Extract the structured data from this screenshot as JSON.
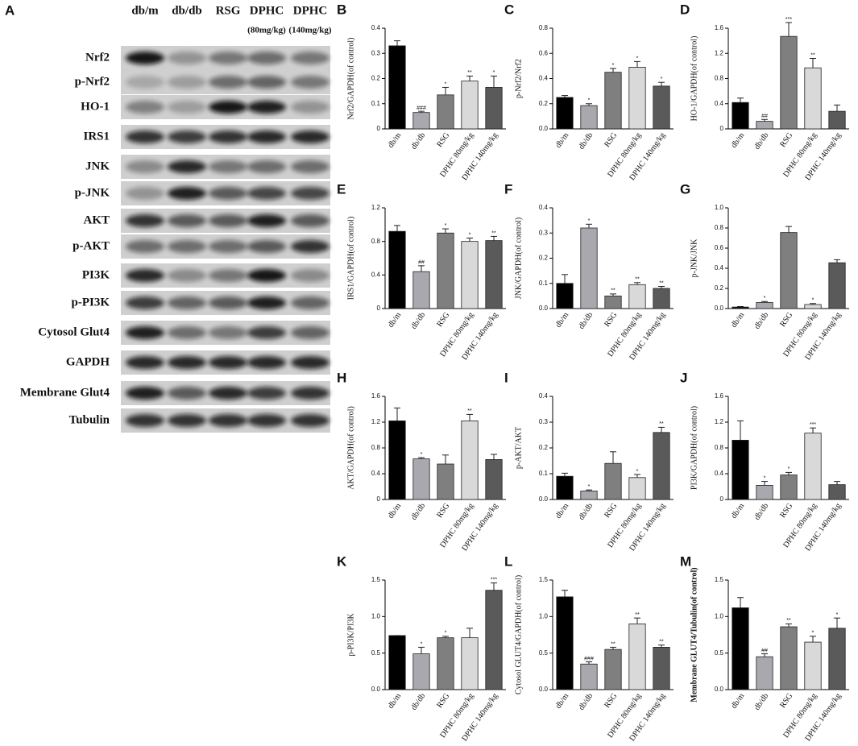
{
  "blot": {
    "label": "A",
    "columns": [
      {
        "name": "db/m"
      },
      {
        "name": "db/db"
      },
      {
        "name": "RSG"
      },
      {
        "name": "DPHC",
        "dose": "(80mg/kg)"
      },
      {
        "name": "DPHC",
        "dose": "(140mg/kg)"
      }
    ],
    "rows": [
      "Nrf2",
      "p-Nrf2",
      "HO-1",
      "IRS1",
      "JNK",
      "p-JNK",
      "AKT",
      "p-AKT",
      "PI3K",
      "p-PI3K",
      "Cytosol Glut4",
      "GAPDH",
      "Membrane Glut4",
      "Tubulin"
    ]
  },
  "chart_data": [
    {
      "type": "bar",
      "panel": "B",
      "ylabel": "Nrf2/GAPDH(of control)",
      "categories": [
        "db/m",
        "db/db",
        "RSG",
        "DPHC 80mg/kg",
        "DPHC 140mg/kg"
      ],
      "colors": [
        "#000000",
        "#a8a8ae",
        "#7f7f7f",
        "#d9d9d9",
        "#5a5a5a"
      ],
      "values": [
        0.33,
        0.065,
        0.135,
        0.19,
        0.165
      ],
      "errors": [
        0.02,
        0.005,
        0.03,
        0.02,
        0.045
      ],
      "annotations": [
        null,
        "###",
        "*",
        "**",
        "*"
      ],
      "ylim": [
        0,
        0.4
      ],
      "yticks": [
        0,
        0.1,
        0.2,
        0.3,
        0.4
      ]
    },
    {
      "type": "bar",
      "panel": "C",
      "ylabel": "p-Nrf2/Nrf2",
      "categories": [
        "db/m",
        "db/db",
        "RSG",
        "DPHC 80mg/kg",
        "DPHC 140mg/kg"
      ],
      "colors": [
        "#000000",
        "#a8a8ae",
        "#7f7f7f",
        "#d9d9d9",
        "#5a5a5a"
      ],
      "values": [
        0.25,
        0.185,
        0.45,
        0.49,
        0.34
      ],
      "errors": [
        0.015,
        0.015,
        0.03,
        0.045,
        0.03
      ],
      "annotations": [
        null,
        "*",
        "*",
        "*",
        "*"
      ],
      "ylim": [
        0,
        0.8
      ],
      "yticks": [
        {
          "value": 0,
          "label": "0.0"
        },
        0.2,
        0.4,
        0.6,
        0.8
      ]
    },
    {
      "type": "bar",
      "panel": "D",
      "ylabel": "HO-1/GAPDH(of control)",
      "categories": [
        "db/m",
        "db/db",
        "RSG",
        "DPHC 80mg/kg",
        "DPHC 140mg/kg"
      ],
      "colors": [
        "#000000",
        "#a8a8ae",
        "#7f7f7f",
        "#d9d9d9",
        "#5a5a5a"
      ],
      "values": [
        0.42,
        0.12,
        1.47,
        0.97,
        0.28
      ],
      "errors": [
        0.07,
        0.03,
        0.22,
        0.15,
        0.1
      ],
      "annotations": [
        null,
        "##",
        "***",
        "**",
        null
      ],
      "ylim": [
        0,
        1.6
      ],
      "yticks": [
        0,
        0.4,
        0.8,
        1.2,
        1.6
      ]
    },
    {
      "type": "bar",
      "panel": "E",
      "ylabel": "IRS1/GAPDH(of control)",
      "categories": [
        "db/m",
        "db/db",
        "RSG",
        "DPHC 80mg/kg",
        "DPHC 140mg/kg"
      ],
      "colors": [
        "#000000",
        "#a8a8ae",
        "#7f7f7f",
        "#d9d9d9",
        "#5a5a5a"
      ],
      "values": [
        0.92,
        0.44,
        0.9,
        0.8,
        0.81
      ],
      "errors": [
        0.07,
        0.07,
        0.05,
        0.04,
        0.05
      ],
      "annotations": [
        null,
        "##",
        "*",
        "*",
        "**"
      ],
      "ylim": [
        0,
        1.2
      ],
      "yticks": [
        0,
        0.4,
        0.8,
        1.2
      ]
    },
    {
      "type": "bar",
      "panel": "F",
      "ylabel": "JNK/GAPDH(of control)",
      "categories": [
        "db/m",
        "db/db",
        "RSG",
        "DPHC 80mg/kg",
        "DPHC 140mg/kg"
      ],
      "colors": [
        "#000000",
        "#a8a8ae",
        "#7f7f7f",
        "#d9d9d9",
        "#5a5a5a"
      ],
      "values": [
        0.1,
        0.32,
        0.05,
        0.095,
        0.08
      ],
      "errors": [
        0.035,
        0.015,
        0.008,
        0.008,
        0.008
      ],
      "annotations": [
        null,
        "*",
        "**",
        "**",
        "**"
      ],
      "ylim": [
        0,
        0.4
      ],
      "yticks": [
        {
          "value": 0,
          "label": "0.0"
        },
        0.1,
        0.2,
        0.3,
        0.4
      ]
    },
    {
      "type": "bar",
      "panel": "G",
      "ylabel": "p-JNK/JNK",
      "categories": [
        "db/m",
        "db/db",
        "RSG",
        "DPHC 80mg/kg",
        "DPHC 140mg/kg"
      ],
      "colors": [
        "#000000",
        "#a8a8ae",
        "#7f7f7f",
        "#d9d9d9",
        "#5a5a5a"
      ],
      "values": [
        0.015,
        0.06,
        0.755,
        0.04,
        0.455
      ],
      "errors": [
        0.005,
        0.01,
        0.06,
        0.01,
        0.03
      ],
      "annotations": [
        null,
        "*",
        null,
        "*",
        null
      ],
      "ylim": [
        0,
        1
      ],
      "yticks": [
        {
          "value": 0,
          "label": "0.0"
        },
        0.2,
        0.4,
        0.6,
        0.8,
        {
          "value": 1,
          "label": "1.0"
        }
      ]
    },
    {
      "type": "bar",
      "panel": "H",
      "ylabel": "AKT/GAPDH(of control)",
      "categories": [
        "db/m",
        "db/db",
        "RSG",
        "DPHC 80mg/kg",
        "DPHC 140mg/kg"
      ],
      "colors": [
        "#000000",
        "#a8a8ae",
        "#7f7f7f",
        "#d9d9d9",
        "#5a5a5a"
      ],
      "values": [
        1.22,
        0.63,
        0.55,
        1.22,
        0.62
      ],
      "errors": [
        0.2,
        0.02,
        0.14,
        0.1,
        0.08
      ],
      "annotations": [
        null,
        "*",
        null,
        "**",
        null
      ],
      "ylim": [
        0,
        1.6
      ],
      "yticks": [
        0,
        0.4,
        0.8,
        1.2,
        1.6
      ]
    },
    {
      "type": "bar",
      "panel": "I",
      "ylabel": "p-AKT/AKT",
      "categories": [
        "db/m",
        "db/db",
        "RSG",
        "DPHC 80mg/kg",
        "DPHC 140mg/kg"
      ],
      "colors": [
        "#000000",
        "#a8a8ae",
        "#7f7f7f",
        "#d9d9d9",
        "#5a5a5a"
      ],
      "values": [
        0.09,
        0.033,
        0.14,
        0.085,
        0.26
      ],
      "errors": [
        0.012,
        0.004,
        0.045,
        0.012,
        0.02
      ],
      "annotations": [
        null,
        "*",
        null,
        "*",
        "**"
      ],
      "ylim": [
        0,
        0.4
      ],
      "yticks": [
        {
          "value": 0,
          "label": "0.0"
        },
        0.1,
        0.2,
        0.3,
        0.4
      ]
    },
    {
      "type": "bar",
      "panel": "J",
      "ylabel": "PI3K/GAPDH(of control)",
      "categories": [
        "db/m",
        "db/db",
        "RSG",
        "DPHC 80mg/kg",
        "DPHC 140mg/kg"
      ],
      "colors": [
        "#000000",
        "#a8a8ae",
        "#7f7f7f",
        "#d9d9d9",
        "#5a5a5a"
      ],
      "values": [
        0.92,
        0.22,
        0.38,
        1.03,
        0.23
      ],
      "errors": [
        0.3,
        0.06,
        0.04,
        0.08,
        0.05
      ],
      "annotations": [
        null,
        "*",
        "*",
        "***",
        null
      ],
      "ylim": [
        0,
        1.6
      ],
      "yticks": [
        0,
        0.4,
        0.8,
        1.2,
        1.6
      ]
    },
    {
      "type": "bar",
      "panel": "K",
      "ylabel": "p-PI3K/PI3K",
      "categories": [
        "db/m",
        "db/db",
        "RSG",
        "DPHC 80mg/kg",
        "DPHC 140mg/kg"
      ],
      "colors": [
        "#000000",
        "#a8a8ae",
        "#7f7f7f",
        "#d9d9d9",
        "#5a5a5a"
      ],
      "values": [
        0.74,
        0.49,
        0.71,
        0.71,
        1.36
      ],
      "errors": [
        0,
        0.09,
        0.02,
        0.13,
        0.1
      ],
      "annotations": [
        null,
        "*",
        "*",
        null,
        "***"
      ],
      "ylim": [
        0,
        1.5
      ],
      "yticks": [
        {
          "value": 0,
          "label": "0.0"
        },
        0.5,
        {
          "value": 1,
          "label": "1.0"
        },
        1.5
      ]
    },
    {
      "type": "bar",
      "panel": "L",
      "ylabel": "Cytosol GLUT4/GAPDH(of control)",
      "categories": [
        "db/m",
        "db/db",
        "RSG",
        "DPHC 80mg/kg",
        "DPHC 140mg/kg"
      ],
      "colors": [
        "#000000",
        "#a8a8ae",
        "#7f7f7f",
        "#d9d9d9",
        "#5a5a5a"
      ],
      "values": [
        1.27,
        0.35,
        0.55,
        0.9,
        0.58
      ],
      "errors": [
        0.09,
        0.03,
        0.03,
        0.08,
        0.03
      ],
      "annotations": [
        null,
        "###",
        "**",
        "**",
        "**"
      ],
      "ylim": [
        0,
        1.5
      ],
      "yticks": [
        {
          "value": 0,
          "label": "0.0"
        },
        0.5,
        {
          "value": 1,
          "label": "1.0"
        },
        1.5
      ]
    },
    {
      "type": "bar",
      "panel": "M",
      "ylabel": "Membrane GLUT4/Tubulin(of control)",
      "categories": [
        "db/m",
        "db/db",
        "RSG",
        "DPHC 80mg/kg",
        "DPHC 140mg/kg"
      ],
      "colors": [
        "#000000",
        "#a8a8ae",
        "#7f7f7f",
        "#d9d9d9",
        "#5a5a5a"
      ],
      "values": [
        1.12,
        0.45,
        0.86,
        0.65,
        0.84
      ],
      "errors": [
        0.14,
        0.04,
        0.04,
        0.08,
        0.14
      ],
      "annotations": [
        null,
        "##",
        "**",
        "*",
        "*"
      ],
      "ylim": [
        0,
        1.5
      ],
      "yticks": [
        {
          "value": 0,
          "label": "0.0"
        },
        0.5,
        {
          "value": 1,
          "label": "1.0"
        },
        1.5
      ]
    }
  ]
}
